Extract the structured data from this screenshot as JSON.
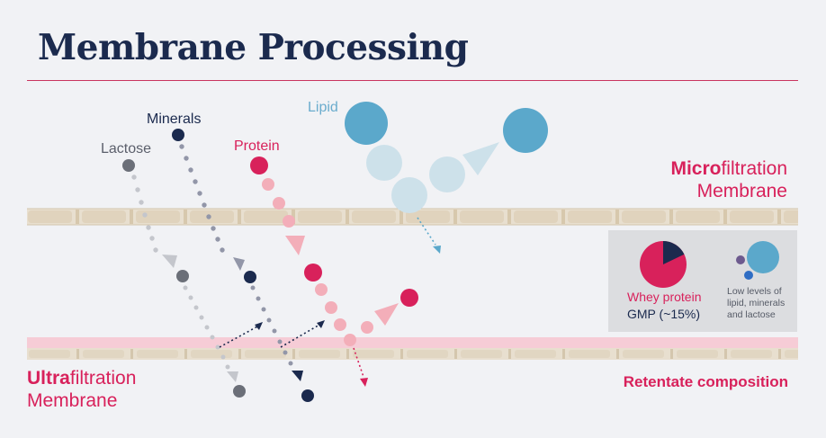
{
  "title": "Membrane Processing",
  "labels": {
    "lactose": "Lactose",
    "minerals": "Minerals",
    "protein": "Protein",
    "lipid": "Lipid"
  },
  "microfiltration": {
    "prefix": "Micro",
    "suffix": "filtration",
    "line2": "Membrane"
  },
  "ultrafiltration": {
    "prefix": "Ultra",
    "suffix": "filtration",
    "line2": "Membrane"
  },
  "retentate": {
    "heading": "Retentate composition",
    "whey": "Whey protein",
    "gmp": "GMP (~15%)",
    "low_levels": "Low levels of lipid, minerals and lactose"
  },
  "colors": {
    "navy": "#1b2a4e",
    "magenta": "#d8215b",
    "lipid_blue": "#5ba8cb",
    "lactose_gray": "#6b6f78",
    "membrane_tan": "#e8dfcf",
    "uf_pink": "#f6ccd6"
  }
}
